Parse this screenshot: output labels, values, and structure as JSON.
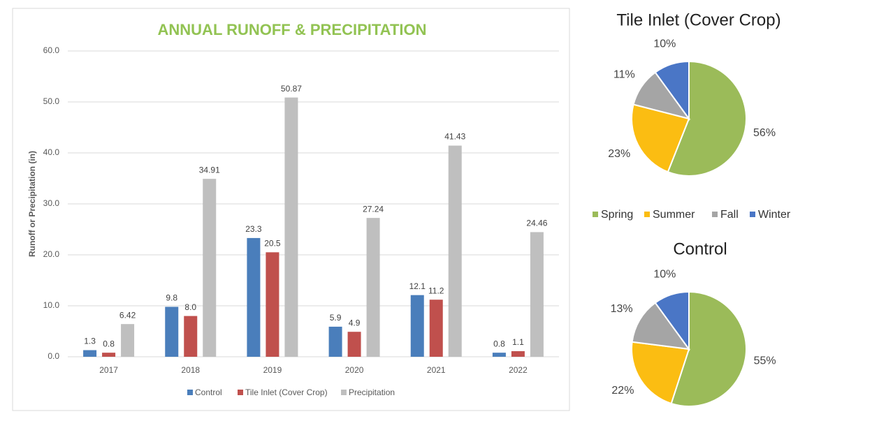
{
  "chart_data": [
    {
      "type": "bar",
      "title": "ANNUAL RUNOFF & PRECIPITATION",
      "y_label": "Runoff or Precipitation (in)",
      "categories": [
        "2017",
        "2018",
        "2019",
        "2020",
        "2021",
        "2022"
      ],
      "series": [
        {
          "name": "Control",
          "color": "#4a7ebb",
          "values": [
            1.3,
            9.8,
            23.3,
            5.9,
            12.1,
            0.8
          ],
          "value_labels": [
            "1.3",
            "9.8",
            "23.3",
            "5.9",
            "12.1",
            "0.8"
          ]
        },
        {
          "name": "Tile Inlet (Cover Crop)",
          "color": "#c0504d",
          "values": [
            0.8,
            8.0,
            20.5,
            4.9,
            11.2,
            1.1
          ],
          "value_labels": [
            "0.8",
            "8.0",
            "20.5",
            "4.9",
            "11.2",
            "1.1"
          ]
        },
        {
          "name": "Precipitation",
          "color": "#bfbfbf",
          "values": [
            6.42,
            34.91,
            50.87,
            27.24,
            41.43,
            24.46
          ],
          "value_labels": [
            "6.42",
            "34.91",
            "50.87",
            "27.24",
            "41.43",
            "24.46"
          ]
        }
      ],
      "ylim": [
        0,
        60
      ],
      "yticks": [
        {
          "value": 0,
          "label": "0.0"
        },
        {
          "value": 10,
          "label": "10.0"
        },
        {
          "value": 20,
          "label": "20.0"
        },
        {
          "value": 30,
          "label": "30.0"
        },
        {
          "value": 40,
          "label": "40.0"
        },
        {
          "value": 50,
          "label": "50.0"
        },
        {
          "value": 60,
          "label": "60.0"
        }
      ],
      "grid": true,
      "legend": "bottom"
    },
    {
      "type": "pie",
      "title": "Tile Inlet (Cover Crop)",
      "categories": [
        "Spring",
        "Summer",
        "Fall",
        "Winter"
      ],
      "colors": [
        "#9bbb59",
        "#fbbd12",
        "#a5a5a5",
        "#4a76c6"
      ],
      "values": [
        56,
        23,
        11,
        10
      ],
      "value_labels": [
        "56%",
        "23%",
        "11%",
        "10%"
      ],
      "legend": "bottom"
    },
    {
      "type": "pie",
      "title": "Control",
      "categories": [
        "Spring",
        "Summer",
        "Fall",
        "Winter"
      ],
      "colors": [
        "#9bbb59",
        "#fbbd12",
        "#a5a5a5",
        "#4a76c6"
      ],
      "values": [
        55,
        22,
        13,
        10
      ],
      "value_labels": [
        "55%",
        "22%",
        "13%",
        "10%"
      ]
    }
  ]
}
